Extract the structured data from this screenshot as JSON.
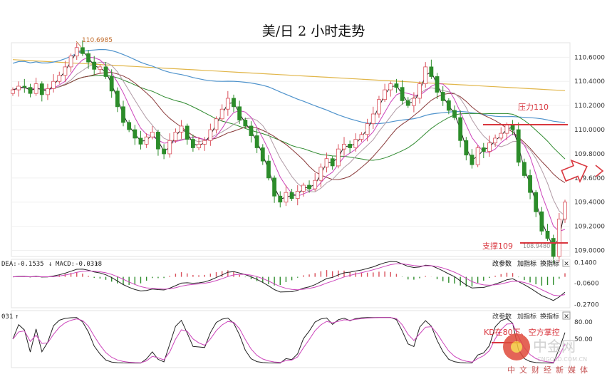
{
  "chart_data": {
    "type": "candlestick",
    "title": "美/日 2 小时走势",
    "y_ticks": [
      "110.6000",
      "110.4000",
      "110.2000",
      "110.0000",
      "109.8000",
      "109.6000",
      "109.4000",
      "109.2000",
      "109.0000"
    ],
    "ylim": [
      108.95,
      110.72
    ],
    "high_label": "110.6985",
    "low_label": "108.9480",
    "annotations": {
      "resistance": "压力110",
      "support": "支撑109",
      "kd_note": "KD在80下、空方掌控"
    },
    "resistance_level": 110.0,
    "support_level": 109.0,
    "close_values": [
      110.33,
      110.36,
      110.35,
      110.3,
      110.38,
      110.29,
      110.34,
      110.4,
      110.45,
      110.52,
      110.61,
      110.68,
      110.63,
      110.56,
      110.5,
      110.52,
      110.44,
      110.32,
      110.19,
      110.06,
      110.0,
      109.93,
      109.88,
      109.94,
      109.98,
      109.84,
      109.8,
      109.91,
      109.98,
      110.03,
      109.92,
      109.85,
      109.88,
      109.91,
      110.0,
      110.09,
      110.17,
      110.26,
      110.19,
      110.08,
      110.03,
      109.95,
      109.85,
      109.74,
      109.6,
      109.45,
      109.4,
      109.48,
      109.43,
      109.49,
      109.54,
      109.51,
      109.58,
      109.69,
      109.76,
      109.7,
      109.84,
      109.88,
      109.85,
      109.92,
      109.96,
      110.05,
      110.13,
      110.25,
      110.33,
      110.38,
      110.35,
      110.24,
      110.2,
      110.26,
      110.38,
      110.52,
      110.44,
      110.31,
      110.24,
      110.16,
      110.1,
      109.91,
      109.79,
      109.71,
      109.85,
      109.82,
      109.89,
      109.93,
      109.97,
      110.04,
      110.0,
      109.73,
      109.62,
      109.48,
      109.32,
      109.16,
      109.1,
      108.95,
      109.26,
      109.4
    ]
  },
  "price_buttons": {
    "params": "改参数",
    "add": "加指标",
    "swap": "换指标",
    "close": "✕"
  },
  "macd": {
    "header_dea": "DEA:-0.1535",
    "header_macd": "MACD:-0.0318",
    "arrow_down": "↓",
    "arrow_up": "↑",
    "y_ticks": [
      "0.1400",
      "-0.0600",
      "-0.2700"
    ],
    "ylim": [
      -0.3,
      0.17
    ],
    "buttons": {
      "params": "改参数",
      "add": "加指标",
      "swap": "换指标",
      "close": "✕"
    }
  },
  "kd": {
    "header": "031",
    "arrow_up": "↑",
    "y_ticks": [
      "80.00",
      "50.00"
    ],
    "ylim": [
      0,
      100
    ],
    "buttons": {
      "params": "改参数",
      "add": "加指标",
      "swap": "换指标",
      "close": "✕"
    }
  },
  "watermark": {
    "logo_text": "中金网",
    "site": "CNGOLD.COM.CN",
    "slogan": "中文财经新媒体"
  },
  "colors": {
    "bull": "#d94f5a",
    "bear": "#2c8c2a",
    "ma_gold": "#e1b64a",
    "ma_blue": "#4f93cc",
    "ma_green": "#2e8a2e",
    "ma_brown": "#8a3a3a",
    "ma_pink": "#cc44bb",
    "ma_black": "#222222",
    "ma_grey": "#b09aa5"
  }
}
